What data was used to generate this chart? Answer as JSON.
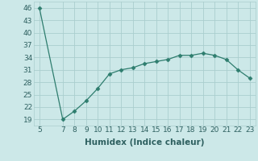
{
  "x": [
    5,
    7,
    8,
    9,
    10,
    11,
    12,
    13,
    14,
    15,
    16,
    17,
    18,
    19,
    20,
    21,
    22,
    23
  ],
  "y": [
    46,
    19,
    21,
    23.5,
    26.5,
    30,
    31,
    31.5,
    32.5,
    33,
    33.5,
    34.5,
    34.5,
    35,
    34.5,
    33.5,
    31,
    29
  ],
  "xlabel": "Humidex (Indice chaleur)",
  "xticks": [
    5,
    7,
    8,
    9,
    10,
    11,
    12,
    13,
    14,
    15,
    16,
    17,
    18,
    19,
    20,
    21,
    22,
    23
  ],
  "yticks": [
    19,
    22,
    25,
    28,
    31,
    34,
    37,
    40,
    43,
    46
  ],
  "ylim": [
    17.5,
    47.5
  ],
  "xlim": [
    4.5,
    23.5
  ],
  "line_color": "#2e7d6e",
  "marker": "D",
  "marker_size": 2.5,
  "bg_color": "#cce8e8",
  "grid_color": "#aacece",
  "tick_fontsize": 6.5,
  "label_fontsize": 7.5
}
